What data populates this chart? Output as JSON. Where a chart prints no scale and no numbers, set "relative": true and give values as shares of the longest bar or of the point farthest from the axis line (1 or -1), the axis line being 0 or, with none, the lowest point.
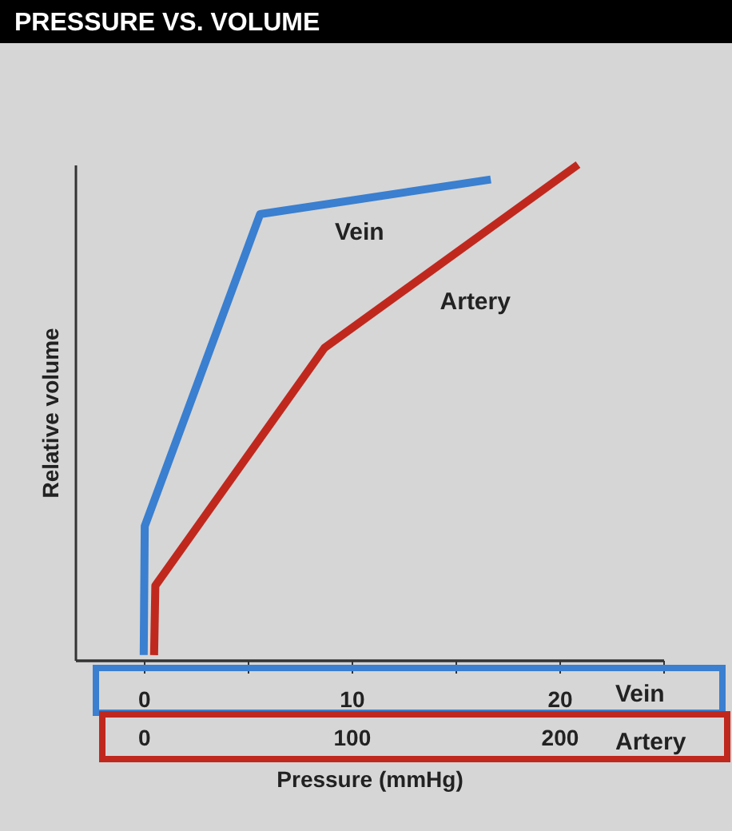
{
  "chart_data": {
    "type": "line",
    "title": "PRESSURE VS. VOLUME",
    "ylabel": "Relative volume",
    "xlabel": "Pressure (mmHg)",
    "relative": true,
    "line_style": "solid",
    "xlim": [
      -3.3,
      25
    ],
    "xticks": [
      0,
      {
        "value": 5,
        "label": null
      },
      10,
      {
        "value": 15,
        "label": null
      },
      20,
      {
        "value": 25,
        "label": null
      }
    ],
    "x2lim": [
      -33,
      250
    ],
    "x2ticks": [
      0,
      100,
      200
    ],
    "annotations": [
      "Vein",
      "Artery"
    ],
    "series": [
      {
        "name": "Vein",
        "color": "#3a7fd0",
        "x": [
          0,
          0.05,
          5.6,
          16.7
        ],
        "values": [
          0.01,
          0.27,
          0.9,
          0.97
        ]
      },
      {
        "name": "Artery",
        "color": "#c0281e",
        "axis": "x2",
        "x": [
          5,
          5.6,
          87,
          209
        ],
        "values": [
          0.01,
          0.15,
          0.63,
          1
        ]
      }
    ]
  }
}
